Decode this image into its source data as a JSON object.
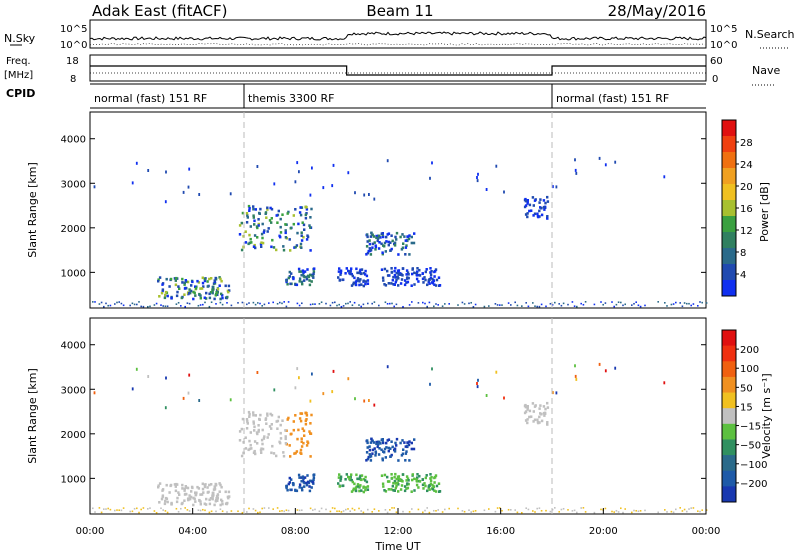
{
  "header": {
    "station": "Adak East (fitACF)",
    "beam": "Beam 11",
    "date": "28/May/2016"
  },
  "top_panels": {
    "nsky_label": "N.Sky",
    "nsearch_label": "N.Search",
    "nsky_ticks": [
      "10^5",
      "10^0"
    ],
    "nsearch_ticks": [
      "10^5",
      "10^0"
    ],
    "freq_label_1": "Freq.",
    "freq_label_2": "[MHz]",
    "freq_ticks": [
      "18",
      "8"
    ],
    "nave_label": "Nave",
    "nave_ticks": [
      "60",
      "0"
    ],
    "cpid_label": "CPID",
    "modes": [
      {
        "label": "normal (fast) 151 RF",
        "start": 0,
        "end": 6
      },
      {
        "label": "themis 3300 RF",
        "start": 6,
        "end": 18
      },
      {
        "label": "normal (fast) 151 RF",
        "start": 18,
        "end": 24
      }
    ]
  },
  "chart_data": [
    {
      "type": "heatmap",
      "name": "Power",
      "xlabel": "",
      "ylabel": "Slant Range [km]",
      "xlim": [
        0,
        24
      ],
      "ylim": [
        200,
        4600
      ],
      "yticks": [
        1000,
        2000,
        3000,
        4000
      ],
      "colorbar": {
        "label": "Power [dB]",
        "ticks": [
          "4",
          "8",
          "12",
          "16",
          "20",
          "24",
          "28"
        ],
        "colors": [
          "#1030f0",
          "#204ab0",
          "#2a6a8a",
          "#308060",
          "#3aa040",
          "#a8c030",
          "#f0c020",
          "#f0a020",
          "#f07010",
          "#f04010",
          "#e01010"
        ]
      },
      "echo_regions": [
        {
          "t0": 2.6,
          "t1": 5.4,
          "r0": 400,
          "r1": 900,
          "level": "high"
        },
        {
          "t0": 5.7,
          "t1": 8.6,
          "r0": 1500,
          "r1": 2500,
          "level": "high"
        },
        {
          "t0": 7.6,
          "t1": 8.7,
          "r0": 700,
          "r1": 1100,
          "level": "mid"
        },
        {
          "t0": 9.6,
          "t1": 10.8,
          "r0": 700,
          "r1": 1100,
          "level": "low"
        },
        {
          "t0": 10.7,
          "t1": 12.6,
          "r0": 1400,
          "r1": 1900,
          "level": "mid"
        },
        {
          "t0": 11.3,
          "t1": 13.6,
          "r0": 700,
          "r1": 1100,
          "level": "low"
        },
        {
          "t0": 16.9,
          "t1": 17.8,
          "r0": 2200,
          "r1": 2700,
          "level": "low"
        }
      ]
    },
    {
      "type": "heatmap",
      "name": "Velocity",
      "xlabel": "Time UT",
      "ylabel": "Slant Range [km]",
      "xlim": [
        0,
        24
      ],
      "ylim": [
        200,
        4600
      ],
      "yticks": [
        1000,
        2000,
        3000,
        4000
      ],
      "xticks": [
        "00:00",
        "04:00",
        "08:00",
        "12:00",
        "16:00",
        "20:00",
        "00:00"
      ],
      "colorbar": {
        "label": "Velocity [m s⁻¹]",
        "ticks": [
          "200",
          "100",
          "50",
          "15",
          "−15",
          "−50",
          "−100",
          "−200"
        ],
        "colors": [
          "#1838b0",
          "#1e5aa8",
          "#2a6a8a",
          "#309060",
          "#5cc040",
          "#c0c0c0",
          "#f0c020",
          "#f09020",
          "#f06010",
          "#f03010",
          "#e01010"
        ]
      }
    }
  ]
}
